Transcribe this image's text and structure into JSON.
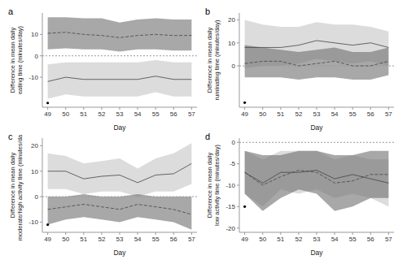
{
  "chart_data": [
    {
      "type": "line",
      "title": "a",
      "x_label": "Day",
      "y_label": [
        "Difference in mean daily",
        "eating time (minutes/day)"
      ],
      "x": [
        49,
        50,
        51,
        52,
        53,
        54,
        55,
        56,
        57
      ],
      "xlim": [
        48.7,
        57.3
      ],
      "xticks": [
        49,
        50,
        51,
        52,
        53,
        54,
        55,
        56,
        57
      ],
      "ylim": [
        -24,
        20
      ],
      "yticks": [
        -10,
        0,
        10
      ],
      "hline": 0,
      "series": [
        {
          "color": "#444444",
          "line_style": "solid",
          "values": [
            -12,
            -10,
            -11,
            -11,
            -11,
            -11,
            -9.5,
            -11,
            -11
          ],
          "lower": [
            -20,
            -18,
            -19,
            -19,
            -19,
            -19,
            -17,
            -19,
            -19
          ],
          "upper": [
            -4,
            -3,
            -3,
            -3,
            -3,
            -3,
            -2,
            -3,
            -3
          ]
        },
        {
          "color": "#444444",
          "line_style": "dashed",
          "values": [
            10.5,
            11,
            10,
            9.5,
            8.5,
            9.5,
            10,
            9.5,
            9.5
          ],
          "lower": [
            3,
            3.5,
            3,
            3,
            2,
            3,
            3,
            2.5,
            2.5
          ],
          "upper": [
            18,
            18,
            17.5,
            17.5,
            15.5,
            17,
            17.5,
            17,
            17
          ]
        }
      ],
      "point": {
        "x": 49,
        "y": -22,
        "color": "#000000"
      }
    },
    {
      "type": "line",
      "title": "b",
      "x_label": "Day",
      "y_label": [
        "Difference in mean daily",
        "ruminating time  (minutes/day)"
      ],
      "x": [
        49,
        50,
        51,
        52,
        53,
        54,
        55,
        56,
        57
      ],
      "xlim": [
        48.7,
        57.3
      ],
      "xticks": [
        49,
        50,
        51,
        52,
        53,
        54,
        55,
        56,
        57
      ],
      "ylim": [
        -18,
        23
      ],
      "yticks": [
        0,
        10,
        20
      ],
      "hline": 0,
      "series": [
        {
          "color": "#444444",
          "line_style": "solid",
          "values": [
            8,
            8,
            8,
            9,
            11,
            10,
            9,
            10,
            8
          ],
          "lower": [
            -1,
            0,
            0,
            1,
            3,
            2,
            1,
            2,
            0
          ],
          "upper": [
            20,
            18,
            17,
            17,
            19,
            18,
            18,
            17,
            15
          ]
        },
        {
          "color": "#444444",
          "line_style": "dashed",
          "values": [
            1,
            2,
            2,
            0,
            1,
            2,
            0,
            0,
            2
          ],
          "lower": [
            -5,
            -5,
            -5,
            -6,
            -5,
            -5,
            -6,
            -6,
            -4
          ],
          "upper": [
            9,
            8,
            7,
            6,
            7,
            8,
            6,
            6,
            8
          ]
        }
      ],
      "point": {
        "x": 49,
        "y": -16,
        "color": "#000000"
      }
    },
    {
      "type": "line",
      "title": "c",
      "x_label": "Day",
      "y_label": [
        "Difference in mean daily",
        "moderate/high activity time (minutes/day)"
      ],
      "x": [
        49,
        50,
        51,
        52,
        53,
        54,
        55,
        56,
        57
      ],
      "xlim": [
        48.7,
        57.3
      ],
      "xticks": [
        49,
        50,
        51,
        52,
        53,
        54,
        55,
        56,
        57
      ],
      "ylim": [
        -14,
        23
      ],
      "yticks": [
        -10,
        0,
        10,
        20
      ],
      "hline": 0,
      "series": [
        {
          "color": "#444444",
          "line_style": "solid",
          "values": [
            10,
            10,
            7,
            8,
            8.5,
            5.5,
            8.5,
            9,
            13
          ],
          "lower": [
            3,
            3,
            1,
            2,
            2,
            0,
            2,
            2,
            5
          ],
          "upper": [
            17,
            16,
            13,
            14,
            15,
            11,
            15,
            17,
            21
          ]
        },
        {
          "color": "#444444",
          "line_style": "dashed",
          "values": [
            -5,
            -4,
            -3,
            -4,
            -5,
            -3,
            -4,
            -5,
            -7
          ],
          "lower": [
            -11,
            -9,
            -8,
            -9,
            -10,
            -8,
            -9,
            -10,
            -13
          ],
          "upper": [
            0,
            0,
            1,
            0,
            0,
            1,
            0,
            0,
            0
          ]
        }
      ],
      "point": {
        "x": 49,
        "y": -11,
        "color": "#000000"
      }
    },
    {
      "type": "line",
      "title": "d",
      "x_label": "Day",
      "y_label": [
        "Difference in mean daily",
        "low activity time  (minutes/day)"
      ],
      "x": [
        49,
        50,
        51,
        52,
        53,
        54,
        55,
        56,
        57
      ],
      "xlim": [
        48.7,
        57.3
      ],
      "xticks": [
        49,
        50,
        51,
        52,
        53,
        54,
        55,
        56,
        57
      ],
      "ylim": [
        -21,
        1
      ],
      "yticks": [
        -20,
        -15,
        -10,
        -5,
        0
      ],
      "hline": 0,
      "series": [
        {
          "color": "#444444",
          "line_style": "solid",
          "values": [
            -7,
            -9.5,
            -7,
            -7,
            -6.5,
            -8.5,
            -7.5,
            -8.5,
            -9.5
          ],
          "lower": [
            -12,
            -15,
            -11,
            -12,
            -11,
            -13,
            -12,
            -13,
            -15
          ],
          "upper": [
            -2,
            -4,
            -2,
            -2,
            -2,
            -4,
            -3,
            -4,
            -4
          ]
        },
        {
          "color": "#444444",
          "line_style": "dashed",
          "values": [
            -7,
            -10,
            -8,
            -6.5,
            -7,
            -9.5,
            -9,
            -7.5,
            -7.5
          ],
          "lower": [
            -12,
            -16,
            -13,
            -11,
            -12,
            -16,
            -15,
            -13,
            -13
          ],
          "upper": [
            -2,
            -3,
            -3,
            -2,
            -2,
            -3,
            -3,
            -2,
            -2
          ]
        }
      ],
      "point": {
        "x": 49,
        "y": -15,
        "color": "#000000"
      }
    }
  ]
}
